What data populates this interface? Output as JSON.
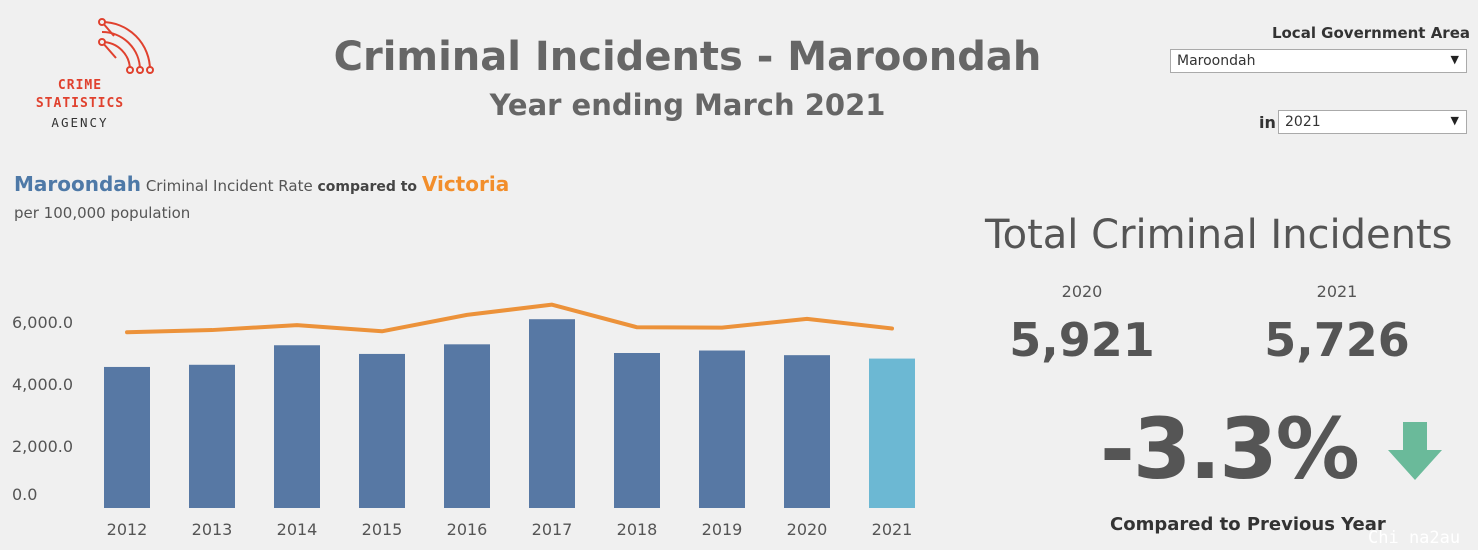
{
  "logo": {
    "line1": "CRIME",
    "line2": "STATISTICS",
    "line3": "AGENCY"
  },
  "header": {
    "title": "Criminal Incidents - Maroondah",
    "subtitle": "Year ending March 2021"
  },
  "filters": {
    "lga_label": "Local Government Area",
    "lga_value": "Maroondah",
    "in_label": "in",
    "year_value": "2021"
  },
  "chart_heading": {
    "lga": "Maroondah",
    "text1": "Criminal Incident Rate",
    "text2": "compared to",
    "victoria": "Victoria",
    "per_population": "per 100,000 population"
  },
  "chart_data": {
    "type": "bar",
    "categories": [
      "2012",
      "2013",
      "2014",
      "2015",
      "2016",
      "2017",
      "2018",
      "2019",
      "2020",
      "2021"
    ],
    "series": [
      {
        "values": [
          4550,
          4620,
          5250,
          4970,
          5280,
          6090,
          5000,
          5080,
          4930,
          4820
        ]
      },
      {
        "values": [
          5670,
          5740,
          5900,
          5700,
          6230,
          6560,
          5830,
          5820,
          6100,
          5790
        ]
      }
    ],
    "y_ticks": [
      {
        "value": 6000,
        "label": "6,000.0"
      },
      {
        "value": 4000,
        "label": "4,000.0"
      },
      {
        "value": 2000,
        "label": "2,000.0"
      },
      {
        "value": 0,
        "label": "0.0"
      }
    ],
    "colors": {
      "bars": "#5778a4",
      "highlight": "#6cb8d3",
      "line": "#ec923a"
    },
    "highlight_category": "2021",
    "grid": false
  },
  "totals": {
    "title": "Total Criminal Incidents",
    "prev_year": "2020",
    "prev_value": "5,921",
    "curr_year": "2021",
    "curr_value": "5,726",
    "change": "-3.3%",
    "change_label": "Compared to Previous Year",
    "change_color": "#6aba9a"
  },
  "watermark": "Chi na2au"
}
